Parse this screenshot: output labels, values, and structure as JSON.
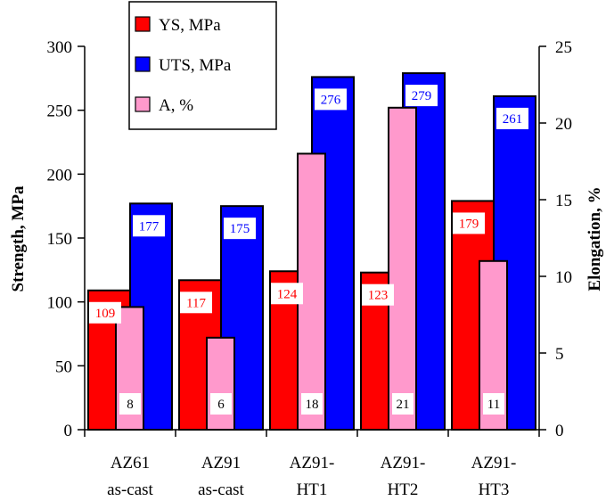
{
  "chart_data": {
    "type": "bar",
    "categories": [
      [
        "AZ61",
        "as-cast"
      ],
      [
        "AZ91",
        "as-cast"
      ],
      [
        "AZ91-",
        "HT1"
      ],
      [
        "AZ91-",
        "HT2"
      ],
      [
        "AZ91-",
        "HT3"
      ]
    ],
    "series": [
      {
        "name": "YS, MPa",
        "axis": "left",
        "color": "#ff0000",
        "values": [
          109,
          117,
          124,
          123,
          179
        ],
        "labels": [
          "109",
          "117",
          "124",
          "123",
          "179"
        ],
        "label_color": "#ff0000"
      },
      {
        "name": "UTS, MPa",
        "axis": "left",
        "color": "#0000ff",
        "values": [
          177,
          175,
          276,
          279,
          261
        ],
        "labels": [
          "177",
          "175",
          "276",
          "279",
          "261"
        ],
        "label_color": "#0000ff"
      },
      {
        "name": "A, %",
        "axis": "right",
        "color": "#ff99cc",
        "values": [
          8,
          6,
          18,
          21,
          11
        ],
        "labels": [
          "8",
          "6",
          "18",
          "21",
          "11"
        ],
        "label_color": "#000000"
      }
    ],
    "ylabel": "Strength, MPa",
    "y2label": "Elongation, %",
    "ylim": [
      0,
      300
    ],
    "y2lim": [
      0,
      25
    ],
    "yticks": [
      "0",
      "50",
      "100",
      "150",
      "200",
      "250",
      "300"
    ],
    "y2ticks": [
      "0",
      "5",
      "10",
      "15",
      "20",
      "25"
    ],
    "grid": false,
    "legend_placement": "top-left"
  }
}
